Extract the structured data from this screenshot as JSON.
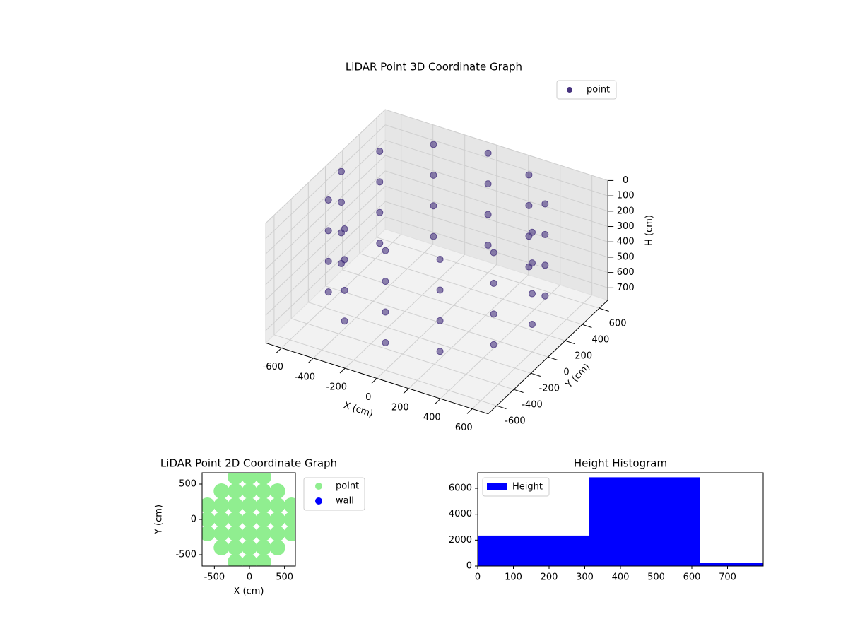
{
  "chart_data": [
    {
      "type": "scatter3d",
      "title": "LiDAR Point 3D Coordinate Graph",
      "xlabel": "X (cm)",
      "ylabel": "Y (cm)",
      "zlabel": "H (cm)",
      "xlim": [
        -700,
        700
      ],
      "ylim": [
        -700,
        700
      ],
      "zlim": [
        780,
        0
      ],
      "xticks": [
        -600,
        -400,
        -200,
        0,
        200,
        400,
        600
      ],
      "yticks": [
        -600,
        -400,
        -200,
        0,
        200,
        400,
        600
      ],
      "zticks": [
        0,
        100,
        200,
        300,
        400,
        500,
        600,
        700
      ],
      "legend": "upper right",
      "series": [
        {
          "name": "point",
          "color": "#46327e",
          "x": [
            600,
            520,
            300,
            0,
            -300,
            -520,
            -600,
            -520,
            -300,
            0,
            300,
            520,
            600,
            520,
            300,
            0,
            -300,
            -520,
            -600,
            -520,
            -300,
            0,
            300,
            520,
            600,
            520,
            300,
            0,
            -300,
            -520,
            -600,
            -520,
            -300,
            0,
            300,
            520,
            600,
            520,
            300,
            0,
            -300,
            -520,
            -600,
            -520,
            -300,
            0,
            300,
            520
          ],
          "y": [
            0,
            300,
            520,
            600,
            520,
            300,
            0,
            -300,
            -520,
            -600,
            -520,
            -300,
            0,
            300,
            520,
            600,
            520,
            300,
            0,
            -300,
            -520,
            -600,
            -520,
            -300,
            0,
            300,
            520,
            600,
            520,
            300,
            0,
            -300,
            -520,
            -600,
            -520,
            -300,
            0,
            300,
            520,
            600,
            520,
            300,
            0,
            -300,
            -520,
            -600,
            -520,
            -300
          ],
          "z": [
            0,
            0,
            0,
            0,
            0,
            0,
            0,
            0,
            0,
            0,
            0,
            0,
            200,
            200,
            200,
            200,
            200,
            200,
            200,
            200,
            200,
            200,
            200,
            200,
            400,
            400,
            400,
            400,
            400,
            400,
            400,
            400,
            400,
            400,
            400,
            400,
            600,
            600,
            600,
            600,
            600,
            600,
            600,
            600,
            600,
            600,
            600,
            600
          ]
        }
      ]
    },
    {
      "type": "scatter",
      "title": "LiDAR Point 2D Coordinate Graph",
      "xlabel": "X (cm)",
      "ylabel": "Y (cm)",
      "xlim": [
        -675,
        655
      ],
      "ylim": [
        -660,
        660
      ],
      "xticks": [
        -500,
        0,
        500
      ],
      "yticks": [
        -500,
        0,
        500
      ],
      "legend": "outside right",
      "series": [
        {
          "name": "point",
          "color": "#90ee90",
          "x": [
            -200,
            0,
            200,
            -400,
            -200,
            0,
            200,
            400,
            -600,
            -400,
            -200,
            0,
            200,
            400,
            600,
            -600,
            -400,
            -200,
            0,
            200,
            400,
            600,
            -600,
            -400,
            -200,
            0,
            200,
            400,
            600,
            -400,
            -200,
            0,
            200,
            400,
            -200,
            0,
            200
          ],
          "y": [
            -600,
            -600,
            -600,
            -400,
            -400,
            -400,
            -400,
            -400,
            -200,
            -200,
            -200,
            -200,
            -200,
            -200,
            -200,
            0,
            0,
            0,
            0,
            0,
            0,
            0,
            200,
            200,
            200,
            200,
            200,
            200,
            200,
            400,
            400,
            400,
            400,
            400,
            600,
            600,
            600
          ]
        },
        {
          "name": "wall",
          "color": "#0000ff",
          "x": [],
          "y": []
        }
      ]
    },
    {
      "type": "histogram",
      "title": "Height Histogram",
      "bins": [
        0,
        311,
        623,
        934
      ],
      "xlim": [
        0,
        800
      ],
      "ylim": [
        0,
        7200
      ],
      "xticks": [
        0,
        100,
        200,
        300,
        400,
        500,
        600,
        700
      ],
      "yticks": [
        0,
        2000,
        4000,
        6000
      ],
      "legend": "upper left",
      "series": [
        {
          "name": "Height",
          "color": "#0000ff",
          "values": [
            2350,
            6850,
            250
          ]
        }
      ]
    }
  ]
}
